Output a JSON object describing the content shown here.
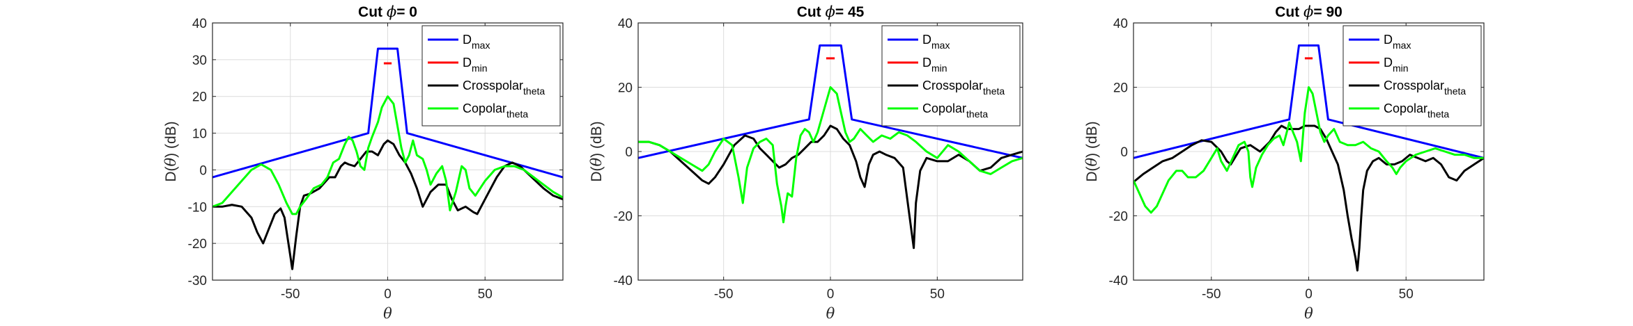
{
  "figure": {
    "background": "#ffffff"
  },
  "chart_data": [
    {
      "type": "line",
      "title": "Cut ϕ= 0",
      "title_prefix": "Cut ",
      "title_symbol": "ϕ",
      "title_suffix": "= 0",
      "xlabel": "θ",
      "ylabel": "D(θ) (dB)",
      "ylabel_prefix": "D(",
      "ylabel_symbol": "θ",
      "ylabel_suffix": ") (dB)",
      "xlim": [
        -90,
        90
      ],
      "ylim": [
        -30,
        40
      ],
      "xticks": [
        -50,
        0,
        50
      ],
      "yticks": [
        -30,
        -20,
        -10,
        0,
        10,
        20,
        30,
        40
      ],
      "grid": true,
      "legend_position": "top-right",
      "series": [
        {
          "name": "D",
          "sub": "max",
          "color": "#0000ff",
          "x": [
            -90,
            -10,
            -5,
            5,
            10,
            90
          ],
          "y": [
            -2,
            10,
            33,
            33,
            10,
            -2
          ]
        },
        {
          "name": "D",
          "sub": "min",
          "color": "#ff0000",
          "x": [
            -2,
            2
          ],
          "y": [
            29,
            29
          ]
        },
        {
          "name": "Crosspolar",
          "sub": "theta",
          "color": "#000000",
          "x": [
            -90,
            -85,
            -80,
            -75,
            -70,
            -67,
            -64,
            -61,
            -58,
            -55,
            -53,
            -51,
            -49,
            -47,
            -45,
            -43,
            -40,
            -35,
            -30,
            -27,
            -24,
            -22,
            -20,
            -17,
            -14,
            -11,
            -8,
            -5,
            -2,
            0,
            3,
            6,
            9,
            12,
            15,
            18,
            22,
            26,
            30,
            33,
            36,
            40,
            44,
            46,
            48,
            52,
            56,
            60,
            64,
            68,
            72,
            76,
            80,
            85,
            90
          ],
          "y": [
            -10,
            -10,
            -9.5,
            -10,
            -13,
            -17,
            -20,
            -16,
            -12,
            -10.5,
            -13,
            -20,
            -27,
            -18,
            -10,
            -7,
            -6.5,
            -5,
            -2,
            -2,
            1,
            2,
            1.5,
            1,
            3,
            5,
            5,
            4,
            7,
            8,
            7,
            4,
            2,
            -1,
            -5,
            -10,
            -6,
            -4,
            -4,
            -8,
            -11,
            -10,
            -11.5,
            -12,
            -10,
            -6,
            -2,
            1,
            2,
            1,
            -1,
            -3,
            -5,
            -7,
            -8
          ]
        },
        {
          "name": "Copolar",
          "sub": "theta",
          "color": "#00ff00",
          "x": [
            -90,
            -85,
            -80,
            -75,
            -70,
            -65,
            -60,
            -56,
            -52,
            -49,
            -47,
            -45,
            -42,
            -38,
            -34,
            -31,
            -28,
            -25,
            -22,
            -20,
            -18,
            -16,
            -14,
            -12,
            -10,
            -8,
            -5,
            -3,
            0,
            3,
            5,
            7,
            9,
            11,
            13,
            15,
            18,
            20,
            22,
            25,
            28,
            30,
            32,
            35,
            38,
            40,
            42,
            45,
            50,
            55,
            60,
            65,
            70,
            75,
            80,
            85,
            90
          ],
          "y": [
            -10,
            -9,
            -6,
            -3,
            0,
            1.5,
            0,
            -4,
            -9,
            -12,
            -12,
            -10,
            -8,
            -5,
            -4,
            -2,
            2,
            3,
            7,
            9,
            8,
            5,
            1,
            0,
            6,
            9,
            13,
            17,
            20,
            18,
            12,
            6,
            2,
            4,
            8,
            4,
            3,
            0,
            -4,
            -1,
            1,
            -3,
            -11,
            -6,
            1,
            0,
            -5,
            -7,
            -3,
            0,
            1,
            1,
            0,
            -2,
            -4,
            -6,
            -7.5
          ]
        }
      ]
    },
    {
      "type": "line",
      "title": "Cut ϕ= 45",
      "title_prefix": "Cut ",
      "title_symbol": "ϕ",
      "title_suffix": "= 45",
      "xlabel": "θ",
      "ylabel": "D(θ) (dB)",
      "ylabel_prefix": "D(",
      "ylabel_symbol": "θ",
      "ylabel_suffix": ") (dB)",
      "xlim": [
        -90,
        90
      ],
      "ylim": [
        -40,
        40
      ],
      "xticks": [
        -50,
        0,
        50
      ],
      "yticks": [
        -40,
        -20,
        0,
        20,
        40
      ],
      "grid": true,
      "legend_position": "top-right",
      "series": [
        {
          "name": "D",
          "sub": "max",
          "color": "#0000ff",
          "x": [
            -90,
            -10,
            -5,
            5,
            10,
            90
          ],
          "y": [
            -2,
            10,
            33,
            33,
            10,
            -2
          ]
        },
        {
          "name": "D",
          "sub": "min",
          "color": "#ff0000",
          "x": [
            -2,
            2
          ],
          "y": [
            29,
            29
          ]
        },
        {
          "name": "Crosspolar",
          "sub": "theta",
          "color": "#000000",
          "x": [
            -90,
            -85,
            -80,
            -75,
            -70,
            -65,
            -60,
            -57,
            -54,
            -50,
            -45,
            -40,
            -36,
            -33,
            -30,
            -27,
            -24,
            -21,
            -18,
            -15,
            -12,
            -9,
            -6,
            -3,
            0,
            3,
            6,
            9,
            12,
            14,
            16,
            18,
            20,
            23,
            26,
            30,
            34,
            36,
            38,
            39,
            40,
            42,
            45,
            50,
            55,
            60,
            65,
            70,
            75,
            80,
            85,
            90
          ],
          "y": [
            3,
            3,
            2,
            0,
            -3,
            -6,
            -9,
            -10,
            -8,
            -4,
            2,
            5,
            4,
            1,
            -1,
            -3,
            -5,
            -4,
            -2,
            -1,
            1,
            3,
            3,
            5,
            8,
            7,
            4,
            2,
            -3,
            -8,
            -11,
            -4,
            -1,
            0,
            -1,
            -2,
            -5,
            -15,
            -25,
            -30,
            -16,
            -6,
            -2,
            -3,
            -3,
            -1,
            -3,
            -6,
            -5,
            -2,
            -1,
            0
          ]
        },
        {
          "name": "Copolar",
          "sub": "theta",
          "color": "#00ff00",
          "x": [
            -90,
            -85,
            -80,
            -75,
            -70,
            -65,
            -60,
            -57,
            -54,
            -50,
            -46,
            -43,
            -41,
            -39,
            -36,
            -33,
            -30,
            -27,
            -25,
            -23,
            -22,
            -21,
            -20,
            -18,
            -16,
            -14,
            -12,
            -10,
            -8,
            -6,
            -3,
            0,
            3,
            5,
            7,
            9,
            11,
            14,
            17,
            20,
            24,
            28,
            32,
            36,
            40,
            45,
            50,
            55,
            60,
            65,
            70,
            75,
            80,
            85,
            90
          ],
          "y": [
            3,
            3,
            2,
            0,
            -2,
            -4,
            -6,
            -4,
            0,
            4,
            2,
            -8,
            -16,
            -5,
            1,
            3,
            4,
            2,
            -10,
            -17,
            -22,
            -17,
            -13,
            -14,
            -2,
            5,
            7,
            6,
            3,
            6,
            13,
            20,
            18,
            12,
            6,
            3,
            4,
            7,
            5,
            3,
            5,
            4,
            6,
            5,
            3,
            0,
            -2,
            2,
            0,
            -3,
            -6,
            -7,
            -5,
            -3,
            -2
          ]
        }
      ]
    },
    {
      "type": "line",
      "title": "Cut ϕ= 90",
      "title_prefix": "Cut ",
      "title_symbol": "ϕ",
      "title_suffix": "= 90",
      "xlabel": "θ",
      "ylabel": "D(θ) (dB)",
      "ylabel_prefix": "D(",
      "ylabel_symbol": "θ",
      "ylabel_suffix": ") (dB)",
      "xlim": [
        -90,
        90
      ],
      "ylim": [
        -40,
        40
      ],
      "xticks": [
        -50,
        0,
        50
      ],
      "yticks": [
        -40,
        -20,
        0,
        20,
        40
      ],
      "grid": true,
      "legend_position": "top-right",
      "series": [
        {
          "name": "D",
          "sub": "max",
          "color": "#0000ff",
          "x": [
            -90,
            -10,
            -5,
            5,
            10,
            90
          ],
          "y": [
            -2,
            10,
            33,
            33,
            10,
            -2
          ]
        },
        {
          "name": "D",
          "sub": "min",
          "color": "#ff0000",
          "x": [
            -2,
            2
          ],
          "y": [
            29,
            29
          ]
        },
        {
          "name": "Crosspolar",
          "sub": "theta",
          "color": "#000000",
          "x": [
            -90,
            -85,
            -80,
            -75,
            -70,
            -65,
            -60,
            -55,
            -50,
            -45,
            -42,
            -40,
            -38,
            -35,
            -30,
            -25,
            -20,
            -17,
            -14,
            -11,
            -8,
            -5,
            -2,
            0,
            3,
            6,
            9,
            12,
            15,
            18,
            20,
            22,
            24,
            25,
            26,
            27,
            28,
            30,
            33,
            36,
            40,
            44,
            48,
            52,
            56,
            60,
            64,
            68,
            72,
            76,
            80,
            85,
            90
          ],
          "y": [
            -9.5,
            -7,
            -5,
            -3,
            -2,
            0,
            2,
            3.5,
            3,
            0,
            -3,
            -4,
            -2,
            1,
            2,
            0,
            3,
            6,
            8,
            7,
            7,
            7,
            8,
            8,
            8,
            7,
            4,
            0,
            -4,
            -12,
            -20,
            -27,
            -33,
            -37,
            -30,
            -20,
            -12,
            -6,
            -3,
            -2,
            -4,
            -4,
            -3,
            -1,
            -2,
            -3,
            -2,
            -4,
            -8,
            -9,
            -6,
            -4,
            -2
          ]
        },
        {
          "name": "Copolar",
          "sub": "theta",
          "color": "#00ff00",
          "x": [
            -90,
            -87,
            -84,
            -81,
            -78,
            -75,
            -72,
            -68,
            -65,
            -62,
            -58,
            -54,
            -50,
            -47,
            -45,
            -42,
            -39,
            -36,
            -33,
            -31,
            -30,
            -29,
            -27,
            -24,
            -21,
            -18,
            -15,
            -13,
            -10,
            -8,
            -6,
            -4,
            -2,
            0,
            2,
            4,
            6,
            8,
            10,
            13,
            16,
            20,
            24,
            28,
            32,
            36,
            40,
            43,
            45,
            47,
            50,
            55,
            60,
            65,
            70,
            75,
            80,
            85,
            90
          ],
          "y": [
            -9,
            -13,
            -17,
            -19,
            -17,
            -13,
            -9,
            -6,
            -6,
            -8,
            -8,
            -6,
            -2,
            1,
            -3,
            -6,
            -2,
            2,
            3,
            0,
            -8,
            -11,
            -5,
            -1,
            2,
            4,
            5,
            2,
            9,
            6,
            3,
            -3,
            12,
            20,
            18,
            12,
            6,
            3,
            5,
            7,
            3,
            2,
            2,
            3,
            1,
            0,
            -3,
            -5,
            -7,
            -5,
            -3,
            -1,
            0,
            1,
            0,
            -1,
            -1,
            -2,
            -2
          ]
        }
      ]
    }
  ]
}
